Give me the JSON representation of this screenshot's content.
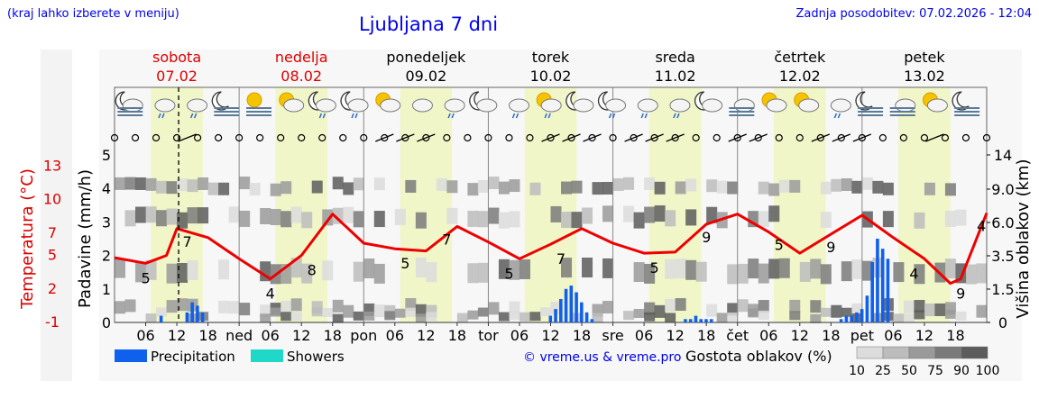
{
  "header": {
    "left_note": "(kraj lahko izberete v meniju)",
    "title": "Ljubljana 7 dni",
    "updated": "Zadnja posodobitev: 07.02.2026 - 12:04"
  },
  "days": [
    {
      "name": "sobota",
      "date": "07.02",
      "weekend": true
    },
    {
      "name": "nedelja",
      "date": "08.02",
      "weekend": true
    },
    {
      "name": "ponedeljek",
      "date": "09.02",
      "weekend": false
    },
    {
      "name": "torek",
      "date": "10.02",
      "weekend": false
    },
    {
      "name": "sreda",
      "date": "11.02",
      "weekend": false
    },
    {
      "name": "četrtek",
      "date": "12.02",
      "weekend": false
    },
    {
      "name": "petek",
      "date": "13.02",
      "weekend": false
    }
  ],
  "axes": {
    "temp_label": "Temperatura (°C)",
    "precip_label": "Padavine (mm/h)",
    "cloud_label": "Višina oblakov (km)",
    "temp_ticks": [
      "13",
      "10",
      "7",
      "5",
      "2",
      "-1"
    ],
    "precip_ticks": [
      "5",
      "4",
      "3",
      "2",
      "1",
      "0"
    ],
    "cloud_ticks": [
      "14",
      "9.0",
      "6.0",
      "3.5",
      "1.5",
      "0"
    ]
  },
  "time_labels": [
    "06",
    "12",
    "18",
    "ned",
    "06",
    "12",
    "18",
    "pon",
    "06",
    "12",
    "18",
    "tor",
    "06",
    "12",
    "18",
    "sre",
    "06",
    "12",
    "18",
    "čet",
    "06",
    "12",
    "18",
    "pet",
    "06",
    "12",
    "18"
  ],
  "legend": {
    "precipitation": "Precipitation",
    "showers": "Showers",
    "credit": "© vreme.us & vreme.pro",
    "density_label": "Gostota oblakov (%)",
    "density_ticks": [
      "10",
      "25",
      "50",
      "75",
      "90",
      "100"
    ]
  },
  "colors": {
    "temp_line": "#ee0000",
    "precip_bar": "#1060ee",
    "showers": "#20d8c8",
    "day_band": "#f0f6c8",
    "weekend_text": "#dd0000",
    "blue_text": "#0000ee"
  },
  "icons": [
    "moon-cloud-fog",
    "cloud-rain",
    "cloud-rain",
    "moon-fog",
    "sun-fog",
    "sun-cloud",
    "moon-cloud-rain",
    "moon-cloud-rain",
    "sun-cloud",
    "cloud",
    "cloud-rain",
    "moon-cloud",
    "cloud-rain",
    "sun-cloud-rain",
    "moon-cloud",
    "moon-cloud-rain",
    "cloud-rain",
    "cloud-rain",
    "moon-cloud",
    "cloud-fog",
    "sun-cloud",
    "sun-cloud",
    "cloud-snow",
    "moon-fog",
    "cloud-fog",
    "sun-cloud",
    "moon-fog"
  ],
  "chart_data": {
    "type": "line",
    "title": "Ljubljana 7 dni",
    "series": [
      {
        "name": "Temperatura",
        "unit": "°C",
        "x_hours": [
          0,
          6,
          10,
          12,
          18,
          24,
          30,
          36,
          42,
          48,
          54,
          60,
          66,
          72,
          78,
          84,
          90,
          96,
          102,
          108,
          114,
          120,
          126,
          132,
          138,
          144,
          150,
          156,
          161,
          163,
          168
        ],
        "values": [
          4.8,
          4.3,
          5.0,
          7.4,
          6.6,
          4.7,
          2.9,
          5.0,
          8.7,
          6.1,
          5.6,
          5.4,
          7.6,
          6.2,
          4.7,
          6.0,
          7.4,
          6.1,
          5.2,
          5.3,
          7.8,
          8.7,
          7.1,
          5.2,
          6.9,
          8.6,
          6.6,
          4.7,
          2.5,
          2.9,
          8.8
        ]
      },
      {
        "name": "Precipitation",
        "unit": "mm/h",
        "x_hours": [
          9,
          14,
          15,
          16,
          17,
          84,
          85,
          86,
          87,
          88,
          89,
          90,
          91,
          92,
          110,
          111,
          112,
          113,
          114,
          115,
          140,
          141,
          142,
          143,
          144,
          145,
          146,
          147,
          148,
          149
        ],
        "values": [
          0.2,
          0.3,
          0.6,
          0.5,
          0.3,
          0.2,
          0.4,
          0.7,
          1.0,
          1.1,
          0.9,
          0.6,
          0.3,
          0.1,
          0.1,
          0.1,
          0.2,
          0.1,
          0.1,
          0.1,
          0.1,
          0.2,
          0.2,
          0.3,
          0.4,
          0.8,
          1.8,
          2.5,
          2.2,
          1.9
        ]
      }
    ],
    "temp_labels": [
      {
        "x": 6,
        "v": "5"
      },
      {
        "x": 14,
        "v": "7"
      },
      {
        "x": 30,
        "v": "4"
      },
      {
        "x": 38,
        "v": "8"
      },
      {
        "x": 56,
        "v": "5"
      },
      {
        "x": 64,
        "v": "7"
      },
      {
        "x": 76,
        "v": "5"
      },
      {
        "x": 86,
        "v": "7"
      },
      {
        "x": 104,
        "v": "5"
      },
      {
        "x": 114,
        "v": "9"
      },
      {
        "x": 128,
        "v": "5"
      },
      {
        "x": 138,
        "v": "9"
      },
      {
        "x": 154,
        "v": "4"
      },
      {
        "x": 163,
        "v": "9"
      },
      {
        "x": 167,
        "v": "4"
      }
    ],
    "temp_range": [
      -1,
      14
    ],
    "precip_range": [
      0,
      5
    ],
    "cloud_height_range_km": [
      0,
      14
    ],
    "now_hour": 12
  }
}
